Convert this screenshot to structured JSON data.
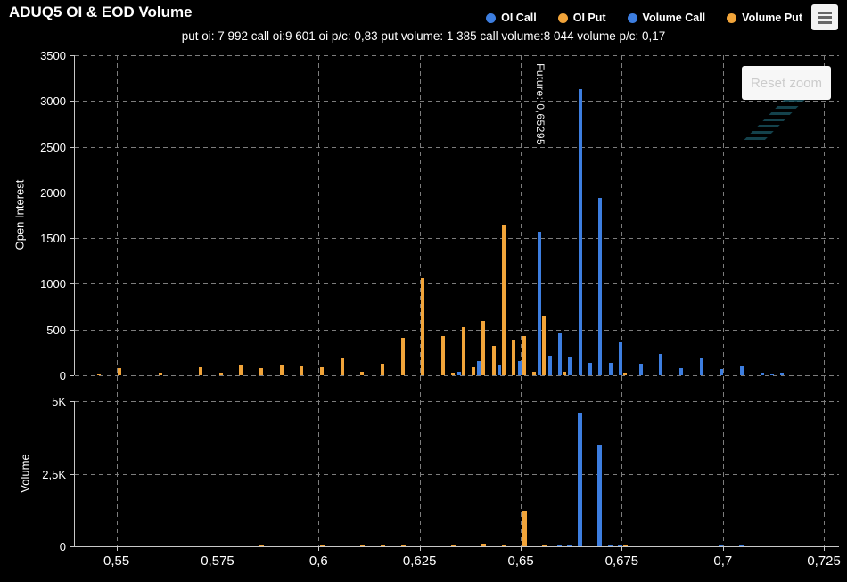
{
  "title": "ADUQ5 OI & EOD Volume",
  "subtitle": "put oi: 7 992 call oi:9 601 oi p/c: 0,83 put volume: 1 385 call volume:8 044 volume p/c: 0,17",
  "legend": [
    {
      "label": "OI Call",
      "color": "#3d7ee0",
      "marker": "circle-icon"
    },
    {
      "label": "OI Put",
      "color": "#f1a43a",
      "marker": "circle-icon"
    },
    {
      "label": "Volume Call",
      "color": "#3d7ee0",
      "marker": "circle-icon"
    },
    {
      "label": "Volume Put",
      "color": "#f1a43a",
      "marker": "circle-icon"
    }
  ],
  "reset_zoom_label": "Reset zoom",
  "export_menu_icon": "hamburger-icon",
  "colors": {
    "call": "#3d7ee0",
    "put": "#f1a43a",
    "grid": "#7d7d7d",
    "axis": "#c8c8c8",
    "background": "#000000"
  },
  "chart_data": [
    {
      "type": "bar",
      "panel": "open-interest",
      "ylabel": "Open Interest",
      "ylim": [
        0,
        3500
      ],
      "grid": true,
      "legend_position": "top-right",
      "yticks": [
        {
          "v": 0,
          "label": "0"
        },
        {
          "v": 500,
          "label": "500"
        },
        {
          "v": 1000,
          "label": "1000"
        },
        {
          "v": 1500,
          "label": "1500"
        },
        {
          "v": 2000,
          "label": "2000"
        },
        {
          "v": 2500,
          "label": "2500"
        },
        {
          "v": 3000,
          "label": "3000"
        },
        {
          "v": 3500,
          "label": "3500"
        }
      ],
      "xlim": [
        0.5395,
        0.7285
      ],
      "xticks": [
        {
          "v": 0.55,
          "label": "0,55"
        },
        {
          "v": 0.575,
          "label": "0,575"
        },
        {
          "v": 0.6,
          "label": "0,6"
        },
        {
          "v": 0.625,
          "label": "0,625"
        },
        {
          "v": 0.65,
          "label": "0,65"
        },
        {
          "v": 0.675,
          "label": "0,675"
        },
        {
          "v": 0.7,
          "label": "0,7"
        },
        {
          "v": 0.725,
          "label": "0,725"
        }
      ],
      "annotation": {
        "text": "Future: 0,65295",
        "x": 0.65295
      },
      "series": [
        {
          "name": "OI Call",
          "color": "#3d7ee0",
          "points": [
            [
              0.635,
              35
            ],
            [
              0.64,
              160
            ],
            [
              0.645,
              105
            ],
            [
              0.65,
              160
            ],
            [
              0.655,
              1570
            ],
            [
              0.6575,
              215
            ],
            [
              0.66,
              460
            ],
            [
              0.6625,
              200
            ],
            [
              0.665,
              3130
            ],
            [
              0.6675,
              140
            ],
            [
              0.67,
              1940
            ],
            [
              0.6725,
              135
            ],
            [
              0.675,
              360
            ],
            [
              0.68,
              130
            ],
            [
              0.685,
              235
            ],
            [
              0.69,
              75
            ],
            [
              0.695,
              185
            ],
            [
              0.7,
              70
            ],
            [
              0.705,
              95
            ],
            [
              0.71,
              25
            ],
            [
              0.7125,
              15
            ],
            [
              0.715,
              20
            ]
          ]
        },
        {
          "name": "OI Put",
          "color": "#f1a43a",
          "points": [
            [
              0.545,
              15
            ],
            [
              0.55,
              80
            ],
            [
              0.56,
              25
            ],
            [
              0.57,
              90
            ],
            [
              0.575,
              25
            ],
            [
              0.58,
              110
            ],
            [
              0.585,
              75
            ],
            [
              0.59,
              110
            ],
            [
              0.595,
              100
            ],
            [
              0.6,
              90
            ],
            [
              0.605,
              190
            ],
            [
              0.61,
              40
            ],
            [
              0.615,
              130
            ],
            [
              0.62,
              410
            ],
            [
              0.625,
              1060
            ],
            [
              0.63,
              425
            ],
            [
              0.6325,
              25
            ],
            [
              0.635,
              530
            ],
            [
              0.6375,
              85
            ],
            [
              0.64,
              600
            ],
            [
              0.6425,
              320
            ],
            [
              0.645,
              1650
            ],
            [
              0.6475,
              380
            ],
            [
              0.65,
              430
            ],
            [
              0.6525,
              35
            ],
            [
              0.655,
              650
            ],
            [
              0.66,
              40
            ],
            [
              0.675,
              25
            ]
          ]
        }
      ]
    },
    {
      "type": "bar",
      "panel": "volume",
      "ylabel": "Volume",
      "ylim": [
        0,
        5000
      ],
      "grid": true,
      "yticks": [
        {
          "v": 0,
          "label": "0"
        },
        {
          "v": 2500,
          "label": "2,5K"
        },
        {
          "v": 5000,
          "label": "5K"
        }
      ],
      "xlim": [
        0.5395,
        0.7285
      ],
      "series": [
        {
          "name": "Volume Call",
          "color": "#3d7ee0",
          "points": [
            [
              0.66,
              40
            ],
            [
              0.6625,
              30
            ],
            [
              0.665,
              4600
            ],
            [
              0.67,
              3500
            ],
            [
              0.6725,
              40
            ],
            [
              0.675,
              25
            ],
            [
              0.7,
              40
            ],
            [
              0.705,
              25
            ]
          ]
        },
        {
          "name": "Volume Put",
          "color": "#f1a43a",
          "points": [
            [
              0.585,
              20
            ],
            [
              0.6,
              20
            ],
            [
              0.61,
              25
            ],
            [
              0.615,
              20
            ],
            [
              0.62,
              45
            ],
            [
              0.6325,
              30
            ],
            [
              0.64,
              90
            ],
            [
              0.645,
              35
            ],
            [
              0.65,
              1230
            ],
            [
              0.655,
              25
            ],
            [
              0.675,
              30
            ]
          ]
        }
      ]
    }
  ]
}
